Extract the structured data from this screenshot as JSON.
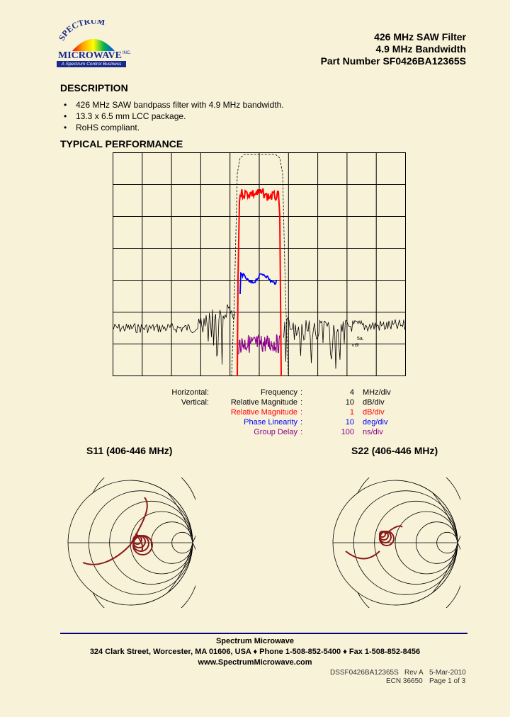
{
  "logo": {
    "arc_text": "SPECTRUM",
    "wordmark": "MICROWAVE",
    "inc": "INC.",
    "tagline": "A Spectrum Control Business"
  },
  "header": {
    "line1": "426 MHz SAW Filter",
    "line2": "4.9 MHz Bandwidth",
    "line3": "Part Number SF0426BA12365S"
  },
  "description": {
    "title": "DESCRIPTION",
    "bullets": [
      "426 MHz SAW bandpass filter with 4.9 MHz bandwidth.",
      "13.3 x 6.5 mm LCC package.",
      "RoHS compliant."
    ]
  },
  "performance": {
    "title": "TYPICAL PERFORMANCE",
    "plot_label_1": "5a.",
    "plot_label_2": "m5/"
  },
  "legend": {
    "horizontal_label": "Horizontal:",
    "vertical_label": "Vertical:",
    "rows": [
      {
        "name": "Frequency",
        "value": "4",
        "unit": "MHz/div",
        "color": "#000000"
      },
      {
        "name": "Relative Magnitude",
        "value": "10",
        "unit": "dB/div",
        "color": "#000000"
      },
      {
        "name": "Relative Magnitude",
        "value": "1",
        "unit": "dB/div",
        "color": "#ff0000"
      },
      {
        "name": "Phase Linearity",
        "value": "10",
        "unit": "deg/div",
        "color": "#0000ff"
      },
      {
        "name": "Group Delay",
        "value": "100",
        "unit": "ns/div",
        "color": "#8b008b"
      }
    ],
    "separator": ":"
  },
  "smith": {
    "s11_title": "S11 (406-446 MHz)",
    "s22_title": "S22 (406-446 MHz)",
    "trace_color": "#8b1a1a"
  },
  "footer": {
    "company": "Spectrum Microwave",
    "address": "324 Clark Street, Worcester, MA 01606, USA  ♦  Phone 1-508-852-5400  ♦  Fax 1-508-852-8456",
    "website": "www.SpectrumMicrowave.com",
    "doc_number": "DSSF0426BA12365S",
    "rev": "Rev A",
    "date": "5-Mar-2010",
    "ecn": "ECN 36650",
    "page": "Page 1 of 3"
  },
  "colors": {
    "background": "#f8f2d8",
    "rule": "#000080"
  }
}
